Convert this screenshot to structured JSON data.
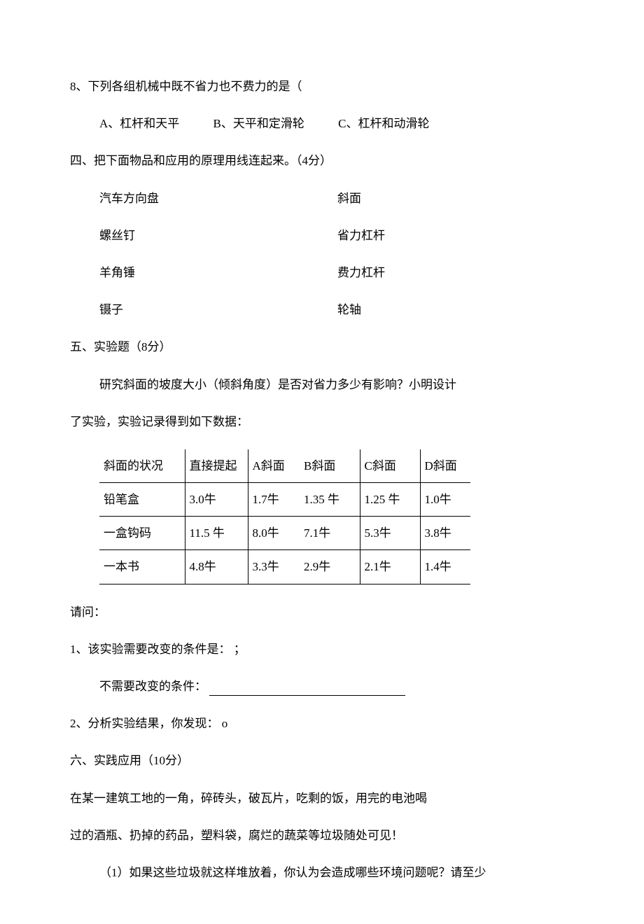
{
  "q8": {
    "stem": "8、下列各组机械中既不省力也不费力的是（",
    "optA": "A、杠杆和天平",
    "optB": "B、天平和定滑轮",
    "optC": "C、杠杆和动滑轮"
  },
  "section4": {
    "heading": "四、把下面物品和应用的原理用线连起来。（4分）",
    "pairs": [
      {
        "left": "汽车方向盘",
        "right": "斜面"
      },
      {
        "left": "螺丝钉",
        "right": "省力杠杆"
      },
      {
        "left": "羊角锤",
        "right": "费力杠杆"
      },
      {
        "left": "镊子",
        "right": "轮轴"
      }
    ]
  },
  "section5": {
    "heading": "五、实验题（8分）",
    "intro1": "研究斜面的坡度大小（倾斜角度）是否对省力多少有影响？小明设计",
    "intro2": "了实验，实验记录得到如下数据：",
    "table": {
      "headers": [
        "斜面的状况",
        "直接提起",
        "A斜面",
        "B斜面",
        "C斜面",
        "D斜面"
      ],
      "rows": [
        [
          "铅笔盒",
          "3.0牛",
          "1.7牛",
          "1.35 牛",
          "1.25 牛",
          "1.0牛"
        ],
        [
          "一盒钩码",
          "11.5 牛",
          "8.0牛",
          "7.1牛",
          "5.3牛",
          "3.8牛"
        ],
        [
          "一本书",
          "4.8牛",
          "3.3牛",
          "2.9牛",
          "2.1牛",
          "1.4牛"
        ]
      ]
    },
    "ask": "请问：",
    "q1": "1、该实验需要改变的条件是： ；",
    "q1b_label": "不需要改变的条件：",
    "q2": "2、分析实验结果，你发现：  o"
  },
  "section6": {
    "heading": "六、实践应用（10分）",
    "p1": "在某一建筑工地的一角，碎砖头，破瓦片，吃剩的饭，用完的电池喝",
    "p2": "过的酒瓶、扔掉的药品，塑料袋，腐烂的蔬菜等垃圾随处可见！",
    "sub1": "（1）如果这些垃圾就这样堆放着，你认为会造成哪些环境问题呢？请至少"
  }
}
